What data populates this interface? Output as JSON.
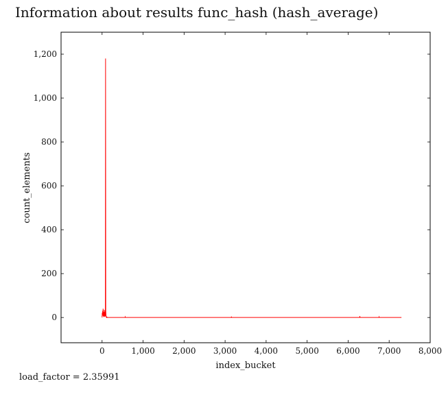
{
  "title": "Information about results func_hash (hash_average)",
  "footer": "load_factor = 2.35991",
  "chart_data": {
    "type": "line",
    "title": "Information about results func_hash (hash_average)",
    "xlabel": "index_bucket",
    "ylabel": "count_elements",
    "xlim": [
      -1000,
      8000
    ],
    "ylim": [
      -115,
      1300
    ],
    "xticks": [
      0,
      1000,
      2000,
      3000,
      4000,
      5000,
      6000,
      7000,
      8000
    ],
    "xtick_labels": [
      "0",
      "1,000",
      "2,000",
      "3,000",
      "4,000",
      "5,000",
      "6,000",
      "7,000",
      "8,000"
    ],
    "yticks": [
      0,
      200,
      400,
      600,
      800,
      1000,
      1200
    ],
    "ytick_labels": [
      "0",
      "200",
      "400",
      "600",
      "800",
      "1,000",
      "1,200"
    ],
    "grid": false,
    "series": [
      {
        "color": "#ff0000",
        "x": [
          0,
          5,
          10,
          15,
          20,
          25,
          30,
          35,
          40,
          45,
          50,
          55,
          60,
          65,
          70,
          75,
          80,
          85,
          90,
          95,
          100,
          105,
          110,
          115,
          120,
          125,
          130,
          135,
          140,
          200,
          560,
          565,
          570,
          1000,
          3150,
          3155,
          3160,
          4000,
          5500,
          6280,
          6285,
          6290,
          6750,
          6755,
          6760,
          7300
        ],
        "y": [
          0,
          22,
          8,
          30,
          15,
          40,
          5,
          25,
          10,
          20,
          2,
          35,
          12,
          18,
          4,
          28,
          6,
          1180,
          30,
          12,
          2,
          1,
          0,
          2,
          0,
          1,
          0,
          0,
          0,
          0,
          0,
          3,
          0,
          0,
          0,
          4,
          0,
          0,
          0,
          0,
          6,
          0,
          0,
          3,
          0,
          0
        ]
      }
    ]
  }
}
